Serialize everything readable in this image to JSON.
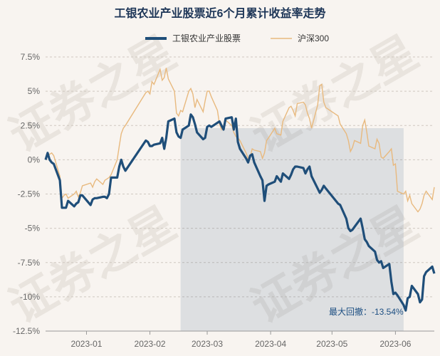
{
  "chart_data": {
    "type": "line",
    "title": "工银农业产业股票近6个月累计收益率走势",
    "watermark": "证券之星",
    "x_ticks": [
      "2023-01",
      "2023-02",
      "2023-03",
      "2023-04",
      "2023-05",
      "2023-06"
    ],
    "y_ticks": [
      "7.5%",
      "5%",
      "2.5%",
      "0%",
      "-2.5%",
      "-5%",
      "-7.5%",
      "-10%",
      "-12.5%"
    ],
    "ylim": [
      -12.5,
      7.5
    ],
    "grid": "horizontal-dashed",
    "legend_position": "top-center",
    "drawdown_label": "最大回撤：-13.54%",
    "drawdown_range": [
      "2023-02-16",
      "2023-06-05"
    ],
    "series": [
      {
        "name": "工银农业产业股票",
        "color": "#1f4e79",
        "points": [
          [
            "2022-12-12",
            0
          ],
          [
            "2022-12-13",
            0.5
          ],
          [
            "2022-12-14",
            0
          ],
          [
            "2022-12-15",
            -0.2
          ],
          [
            "2022-12-16",
            -0.3
          ],
          [
            "2022-12-19",
            -1.5
          ],
          [
            "2022-12-20",
            -3.5
          ],
          [
            "2022-12-21",
            -3.5
          ],
          [
            "2022-12-22",
            -3.5
          ],
          [
            "2022-12-23",
            -3
          ],
          [
            "2022-12-26",
            -3.4
          ],
          [
            "2022-12-27",
            -3.2
          ],
          [
            "2022-12-28",
            -3.1
          ],
          [
            "2022-12-29",
            -2.6
          ],
          [
            "2022-12-30",
            -2.6
          ],
          [
            "2023-01-03",
            -3.3
          ],
          [
            "2023-01-04",
            -2.9
          ],
          [
            "2023-01-05",
            -2.8
          ],
          [
            "2023-01-06",
            -2.8
          ],
          [
            "2023-01-09",
            -2.7
          ],
          [
            "2023-01-10",
            -2.7
          ],
          [
            "2023-01-11",
            -2.8
          ],
          [
            "2023-01-12",
            -2.5
          ],
          [
            "2023-01-13",
            -1.3
          ],
          [
            "2023-01-16",
            -1.3
          ],
          [
            "2023-01-17",
            -0.5
          ],
          [
            "2023-01-18",
            0
          ],
          [
            "2023-01-19",
            -0.5
          ],
          [
            "2023-01-20",
            -0.8
          ],
          [
            "2023-01-30",
            1.4
          ],
          [
            "2023-01-31",
            1.3
          ],
          [
            "2023-02-01",
            1.0
          ],
          [
            "2023-02-02",
            1.0
          ],
          [
            "2023-02-03",
            1.1
          ],
          [
            "2023-02-06",
            1.2
          ],
          [
            "2023-02-07",
            1.6
          ],
          [
            "2023-02-08",
            0.8
          ],
          [
            "2023-02-09",
            1.6
          ],
          [
            "2023-02-10",
            2.8
          ],
          [
            "2023-02-13",
            3.0
          ],
          [
            "2023-02-14",
            2.0
          ],
          [
            "2023-02-15",
            1.7
          ],
          [
            "2023-02-16",
            1.6
          ],
          [
            "2023-02-17",
            2.2
          ],
          [
            "2023-02-20",
            2.5
          ],
          [
            "2023-02-21",
            3.3
          ],
          [
            "2023-02-22",
            3.1
          ],
          [
            "2023-02-23",
            2.6
          ],
          [
            "2023-02-24",
            2.0
          ],
          [
            "2023-02-27",
            1.5
          ],
          [
            "2023-02-28",
            1.6
          ],
          [
            "2023-03-01",
            2.4
          ],
          [
            "2023-03-02",
            2.5
          ],
          [
            "2023-03-03",
            2.4
          ],
          [
            "2023-03-06",
            2.7
          ],
          [
            "2023-03-07",
            2.8
          ],
          [
            "2023-03-08",
            2.5
          ],
          [
            "2023-03-09",
            2.2
          ],
          [
            "2023-03-10",
            3.0
          ],
          [
            "2023-03-13",
            3.1
          ],
          [
            "2023-03-14",
            2.2
          ],
          [
            "2023-03-15",
            3.0
          ],
          [
            "2023-03-16",
            1.3
          ],
          [
            "2023-03-17",
            0.8
          ],
          [
            "2023-03-20",
            0.1
          ],
          [
            "2023-03-21",
            -0.2
          ],
          [
            "2023-03-22",
            0.3
          ],
          [
            "2023-03-23",
            0.4
          ],
          [
            "2023-03-24",
            -0.2
          ],
          [
            "2023-03-27",
            -1.2
          ],
          [
            "2023-03-28",
            -1.5
          ],
          [
            "2023-03-29",
            -3.0
          ],
          [
            "2023-03-30",
            -1.9
          ],
          [
            "2023-03-31",
            -1.8
          ],
          [
            "2023-04-03",
            -1.6
          ],
          [
            "2023-04-04",
            -1.2
          ],
          [
            "2023-04-06",
            -1.6
          ],
          [
            "2023-04-07",
            -1.0
          ],
          [
            "2023-04-10",
            -1.4
          ],
          [
            "2023-04-11",
            -1.1
          ],
          [
            "2023-04-12",
            -0.7
          ],
          [
            "2023-04-13",
            -0.5
          ],
          [
            "2023-04-14",
            -0.5
          ],
          [
            "2023-04-17",
            -0.6
          ],
          [
            "2023-04-18",
            -1.0
          ],
          [
            "2023-04-19",
            -0.7
          ],
          [
            "2023-04-20",
            -0.5
          ],
          [
            "2023-04-21",
            -1.2
          ],
          [
            "2023-04-24",
            -2.1
          ],
          [
            "2023-04-25",
            -2.4
          ],
          [
            "2023-04-26",
            -2.2
          ],
          [
            "2023-04-27",
            -1.9
          ],
          [
            "2023-04-28",
            -2.1
          ],
          [
            "2023-05-04",
            -3.2
          ],
          [
            "2023-05-05",
            -3.3
          ],
          [
            "2023-05-08",
            -4.3
          ],
          [
            "2023-05-09",
            -5.0
          ],
          [
            "2023-05-10",
            -5.2
          ],
          [
            "2023-05-11",
            -5.1
          ],
          [
            "2023-05-12",
            -4.9
          ],
          [
            "2023-05-15",
            -4.3
          ],
          [
            "2023-05-16",
            -5.0
          ],
          [
            "2023-05-17",
            -5.8
          ],
          [
            "2023-05-18",
            -6.0
          ],
          [
            "2023-05-19",
            -6.3
          ],
          [
            "2023-05-22",
            -6.7
          ],
          [
            "2023-05-23",
            -7.3
          ],
          [
            "2023-05-24",
            -7.5
          ],
          [
            "2023-05-25",
            -7.4
          ],
          [
            "2023-05-26",
            -7.9
          ],
          [
            "2023-05-29",
            -7.6
          ],
          [
            "2023-05-30",
            -8.9
          ],
          [
            "2023-05-31",
            -9.8
          ],
          [
            "2023-06-01",
            -9.7
          ],
          [
            "2023-06-02",
            -9.9
          ],
          [
            "2023-06-05",
            -10.6
          ],
          [
            "2023-06-06",
            -11.0
          ],
          [
            "2023-06-07",
            -10.1
          ],
          [
            "2023-06-08",
            -10.0
          ],
          [
            "2023-06-09",
            -9.2
          ],
          [
            "2023-06-12",
            -9.8
          ],
          [
            "2023-06-13",
            -10.4
          ],
          [
            "2023-06-14",
            -10.2
          ],
          [
            "2023-06-15",
            -8.5
          ],
          [
            "2023-06-16",
            -8.2
          ],
          [
            "2023-06-19",
            -7.8
          ],
          [
            "2023-06-20",
            -8.3
          ]
        ]
      },
      {
        "name": "沪深300",
        "color": "#e8b97e",
        "points": [
          [
            "2022-12-12",
            0
          ],
          [
            "2022-12-13",
            0.3
          ],
          [
            "2022-12-14",
            0.4
          ],
          [
            "2022-12-15",
            0.5
          ],
          [
            "2022-12-16",
            0.3
          ],
          [
            "2022-12-19",
            -1.2
          ],
          [
            "2022-12-20",
            -2.8
          ],
          [
            "2022-12-21",
            -2.6
          ],
          [
            "2022-12-22",
            -2.5
          ],
          [
            "2022-12-23",
            -2.8
          ],
          [
            "2022-12-26",
            -2.5
          ],
          [
            "2022-12-27",
            -2.3
          ],
          [
            "2022-12-28",
            -2.7
          ],
          [
            "2022-12-29",
            -2.4
          ],
          [
            "2022-12-30",
            -1.9
          ],
          [
            "2023-01-03",
            -1.7
          ],
          [
            "2023-01-04",
            -2.0
          ],
          [
            "2023-01-05",
            -1.6
          ],
          [
            "2023-01-06",
            -1.4
          ],
          [
            "2023-01-09",
            -1.8
          ],
          [
            "2023-01-10",
            -1.5
          ],
          [
            "2023-01-11",
            -1.4
          ],
          [
            "2023-01-12",
            -1.3
          ],
          [
            "2023-01-13",
            -1.1
          ],
          [
            "2023-01-16",
            0
          ],
          [
            "2023-01-17",
            1.0
          ],
          [
            "2023-01-18",
            1.9
          ],
          [
            "2023-01-19",
            2.3
          ],
          [
            "2023-01-20",
            2.5
          ],
          [
            "2023-01-30",
            4.9
          ],
          [
            "2023-01-31",
            5.0
          ],
          [
            "2023-02-01",
            4.8
          ],
          [
            "2023-02-02",
            5.7
          ],
          [
            "2023-02-03",
            5.5
          ],
          [
            "2023-02-06",
            6.6
          ],
          [
            "2023-02-07",
            5.8
          ],
          [
            "2023-02-08",
            6.0
          ],
          [
            "2023-02-09",
            6.7
          ],
          [
            "2023-02-10",
            5.9
          ],
          [
            "2023-02-13",
            5.0
          ],
          [
            "2023-02-14",
            3.4
          ],
          [
            "2023-02-15",
            3.2
          ],
          [
            "2023-02-16",
            3.6
          ],
          [
            "2023-02-17",
            3.5
          ],
          [
            "2023-02-20",
            5.0
          ],
          [
            "2023-02-21",
            5.2
          ],
          [
            "2023-02-22",
            4.8
          ],
          [
            "2023-02-23",
            3.8
          ],
          [
            "2023-02-24",
            4.4
          ],
          [
            "2023-02-27",
            3.5
          ],
          [
            "2023-02-28",
            4.3
          ],
          [
            "2023-03-01",
            5.0
          ],
          [
            "2023-03-02",
            5.0
          ],
          [
            "2023-03-03",
            4.6
          ],
          [
            "2023-03-06",
            3.6
          ],
          [
            "2023-03-07",
            2.6
          ],
          [
            "2023-03-08",
            2.2
          ],
          [
            "2023-03-09",
            2.5
          ],
          [
            "2023-03-10",
            2.9
          ],
          [
            "2023-03-13",
            2.5
          ],
          [
            "2023-03-14",
            2.0
          ],
          [
            "2023-03-15",
            1.7
          ],
          [
            "2023-03-16",
            1.6
          ],
          [
            "2023-03-17",
            1.4
          ],
          [
            "2023-03-20",
            0.5
          ],
          [
            "2023-03-21",
            0.1
          ],
          [
            "2023-03-22",
            0.2
          ],
          [
            "2023-03-23",
            0.8
          ],
          [
            "2023-03-24",
            0.7
          ],
          [
            "2023-03-27",
            0.6
          ],
          [
            "2023-03-28",
            0.1
          ],
          [
            "2023-03-29",
            0.5
          ],
          [
            "2023-03-30",
            1.4
          ],
          [
            "2023-03-31",
            1.6
          ],
          [
            "2023-04-03",
            2.3
          ],
          [
            "2023-04-04",
            1.9
          ],
          [
            "2023-04-06",
            1.8
          ],
          [
            "2023-04-07",
            2.8
          ],
          [
            "2023-04-10",
            3.8
          ],
          [
            "2023-04-11",
            3.9
          ],
          [
            "2023-04-12",
            3.6
          ],
          [
            "2023-04-13",
            3.2
          ],
          [
            "2023-04-14",
            4.1
          ],
          [
            "2023-04-17",
            4.2
          ],
          [
            "2023-04-18",
            4.0
          ],
          [
            "2023-04-19",
            3.4
          ],
          [
            "2023-04-20",
            3.0
          ],
          [
            "2023-04-21",
            2.3
          ],
          [
            "2023-04-24",
            4.0
          ],
          [
            "2023-04-25",
            5.4
          ],
          [
            "2023-04-26",
            5.5
          ],
          [
            "2023-04-27",
            4.2
          ],
          [
            "2023-04-28",
            3.8
          ],
          [
            "2023-05-04",
            3.2
          ],
          [
            "2023-05-05",
            2.6
          ],
          [
            "2023-05-08",
            1.9
          ],
          [
            "2023-05-09",
            1.4
          ],
          [
            "2023-05-10",
            0.6
          ],
          [
            "2023-05-11",
            0.9
          ],
          [
            "2023-05-12",
            1.4
          ],
          [
            "2023-05-15",
            1.2
          ],
          [
            "2023-05-16",
            2.5
          ],
          [
            "2023-05-17",
            2.9
          ],
          [
            "2023-05-18",
            2.0
          ],
          [
            "2023-05-19",
            1.0
          ],
          [
            "2023-05-22",
            0.8
          ],
          [
            "2023-05-23",
            1.5
          ],
          [
            "2023-05-24",
            1.2
          ],
          [
            "2023-05-25",
            0.2
          ],
          [
            "2023-05-26",
            0.1
          ],
          [
            "2023-05-29",
            0.6
          ],
          [
            "2023-05-30",
            0.8
          ],
          [
            "2023-05-31",
            -0.4
          ],
          [
            "2023-06-01",
            -0.3
          ],
          [
            "2023-06-02",
            -2.3
          ],
          [
            "2023-06-05",
            -2.5
          ],
          [
            "2023-06-06",
            -2.3
          ],
          [
            "2023-06-07",
            -3.0
          ],
          [
            "2023-06-08",
            -2.6
          ],
          [
            "2023-06-09",
            -3.2
          ],
          [
            "2023-06-12",
            -3.8
          ],
          [
            "2023-06-13",
            -3.6
          ],
          [
            "2023-06-14",
            -3.2
          ],
          [
            "2023-06-15",
            -2.6
          ],
          [
            "2023-06-16",
            -2.3
          ],
          [
            "2023-06-19",
            -2.9
          ],
          [
            "2023-06-20",
            -2.0
          ]
        ]
      }
    ]
  }
}
